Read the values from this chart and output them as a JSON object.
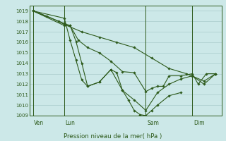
{
  "title": "Pression niveau de la mer( hPa )",
  "bg_color": "#cce8e8",
  "grid_color": "#aacccc",
  "line_color": "#2d5a1b",
  "ylim": [
    1009,
    1019.5
  ],
  "yticks": [
    1009,
    1010,
    1011,
    1012,
    1013,
    1014,
    1015,
    1016,
    1017,
    1018,
    1019
  ],
  "xlim": [
    0,
    16.5
  ],
  "day_labels": [
    "Ven",
    "Lun",
    "Sam",
    "Dim"
  ],
  "day_positions": [
    0.3,
    3.0,
    10.0,
    14.0
  ],
  "lines": [
    {
      "x": [
        0.3,
        3.0,
        3.5,
        4.2,
        5.0,
        6.0,
        7.0,
        8.0,
        9.0,
        10.0,
        10.5,
        11.0,
        11.5,
        12.0,
        13.0,
        14.0,
        14.5,
        15.2,
        16.0
      ],
      "y": [
        1019.0,
        1017.8,
        1017.6,
        1016.2,
        1015.5,
        1015.0,
        1014.2,
        1013.2,
        1013.1,
        1011.3,
        1011.6,
        1011.8,
        1011.8,
        1012.8,
        1012.8,
        1013.0,
        1012.0,
        1013.0,
        1013.0
      ]
    },
    {
      "x": [
        0.3,
        3.0,
        3.5,
        4.0,
        4.5,
        5.0,
        6.0,
        7.0,
        7.5,
        8.0,
        8.5,
        9.0,
        9.5,
        10.0,
        10.5,
        11.0,
        12.0,
        13.0
      ],
      "y": [
        1019.0,
        1018.3,
        1016.2,
        1014.3,
        1012.4,
        1011.8,
        1012.2,
        1013.4,
        1013.1,
        1011.4,
        1010.5,
        1009.5,
        1009.1,
        1009.0,
        1009.5,
        1010.0,
        1010.9,
        1011.2
      ]
    },
    {
      "x": [
        0.3,
        3.0,
        3.5,
        4.0,
        4.5,
        5.0,
        6.0,
        7.0,
        8.0,
        9.0,
        10.0,
        11.0,
        12.0,
        13.0,
        14.0,
        15.0,
        16.0
      ],
      "y": [
        1019.0,
        1017.6,
        1017.6,
        1016.1,
        1014.0,
        1011.8,
        1012.2,
        1013.4,
        1011.4,
        1010.5,
        1009.5,
        1011.2,
        1012.0,
        1012.5,
        1012.8,
        1012.0,
        1013.0
      ]
    },
    {
      "x": [
        0.3,
        1.5,
        2.5,
        3.0,
        4.5,
        6.0,
        7.5,
        9.0,
        10.5,
        12.0,
        13.5,
        15.0,
        16.0
      ],
      "y": [
        1019.0,
        1018.5,
        1018.0,
        1017.7,
        1017.0,
        1016.5,
        1016.0,
        1015.5,
        1014.5,
        1013.5,
        1013.0,
        1012.3,
        1013.0
      ]
    }
  ]
}
